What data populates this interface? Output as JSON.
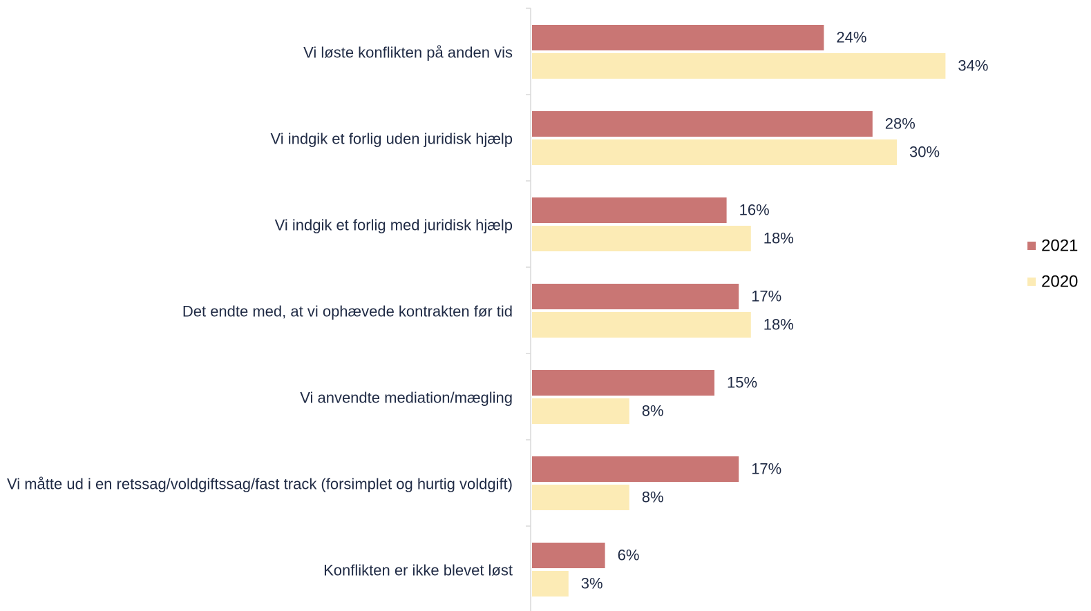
{
  "chart_data": {
    "type": "bar",
    "orientation": "horizontal",
    "categories": [
      "Vi løste konflikten på anden vis",
      "Vi indgik et forlig uden juridisk hjælp",
      "Vi indgik et forlig med juridisk hjælp",
      "Det endte med, at vi ophævede kontrakten før tid",
      "Vi anvendte mediation/mægling",
      "Vi måtte ud i en retssag/voldgiftssag/fast track (forsimplet og hurtig voldgift)",
      "Konflikten er ikke blevet løst"
    ],
    "series": [
      {
        "name": "2021",
        "color": "#c97674",
        "values": [
          24,
          28,
          16,
          17,
          15,
          17,
          6
        ],
        "value_labels": [
          "24%",
          "28%",
          "16%",
          "17%",
          "15%",
          "17%",
          "6%"
        ]
      },
      {
        "name": "2020",
        "color": "#fcebb5",
        "values": [
          34,
          30,
          18,
          18,
          8,
          8,
          3
        ],
        "value_labels": [
          "34%",
          "30%",
          "18%",
          "18%",
          "8%",
          "8%",
          "3%"
        ]
      }
    ],
    "xlim": [
      0,
      45
    ],
    "legend": "right"
  }
}
